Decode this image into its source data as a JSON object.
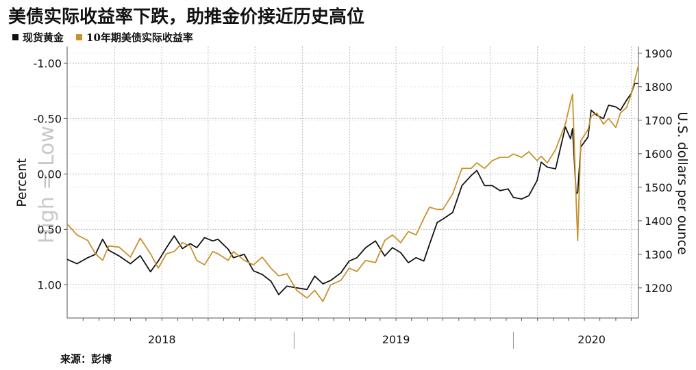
{
  "title": "美债实际收益率下跌，助推金价接近历史高位",
  "source": "来源：彭博",
  "chart_data": {
    "type": "line",
    "legend_placement": "top-left",
    "grid": true,
    "left_axis": {
      "label": "Percent",
      "watermark": "High = Low",
      "inverted": true,
      "range": [
        1.3,
        -1.15
      ],
      "ticks": [
        "-1.00",
        "-0.50",
        "0.00",
        "0.50",
        "1.00"
      ],
      "tick_values": [
        -1.0,
        -0.5,
        0.0,
        0.5,
        1.0
      ]
    },
    "right_axis": {
      "label": "U.S. dollars per ounce",
      "range": [
        1110,
        1920
      ],
      "ticks": [
        "1900",
        "1800",
        "1700",
        "1600",
        "1500",
        "1400",
        "1300",
        "1200"
      ],
      "tick_values": [
        1900,
        1800,
        1700,
        1600,
        1500,
        1400,
        1300,
        1200
      ]
    },
    "x_axis": {
      "range": [
        "2017-07-01",
        "2020-07-15"
      ],
      "year_labels": [
        {
          "label": "2018",
          "center": "2018-01-01"
        },
        {
          "label": "2019",
          "center": "2019-04-01"
        },
        {
          "label": "2020",
          "center": "2020-04-15"
        }
      ],
      "year_separators": [
        "2018-09-15",
        "2019-11-15"
      ],
      "grid_dates": [
        "2017-10-01",
        "2018-01-01",
        "2018-04-01",
        "2018-07-01",
        "2018-10-01",
        "2019-01-01",
        "2019-04-01",
        "2019-07-01",
        "2019-10-01",
        "2020-01-01",
        "2020-04-01",
        "2020-07-01"
      ]
    },
    "series": [
      {
        "name": "现货黄金",
        "axis": "right",
        "color": "#111111",
        "points": [
          [
            "2017-07-01",
            1285
          ],
          [
            "2017-07-20",
            1272
          ],
          [
            "2017-08-10",
            1290
          ],
          [
            "2017-08-25",
            1300
          ],
          [
            "2017-09-08",
            1345
          ],
          [
            "2017-09-20",
            1312
          ],
          [
            "2017-10-10",
            1295
          ],
          [
            "2017-11-01",
            1272
          ],
          [
            "2017-11-20",
            1296
          ],
          [
            "2017-12-10",
            1248
          ],
          [
            "2017-12-25",
            1280
          ],
          [
            "2018-01-10",
            1320
          ],
          [
            "2018-01-25",
            1355
          ],
          [
            "2018-02-10",
            1317
          ],
          [
            "2018-02-25",
            1332
          ],
          [
            "2018-03-10",
            1320
          ],
          [
            "2018-03-25",
            1350
          ],
          [
            "2018-04-10",
            1340
          ],
          [
            "2018-04-20",
            1345
          ],
          [
            "2018-05-10",
            1315
          ],
          [
            "2018-05-20",
            1290
          ],
          [
            "2018-06-10",
            1300
          ],
          [
            "2018-06-28",
            1251
          ],
          [
            "2018-07-15",
            1240
          ],
          [
            "2018-08-01",
            1220
          ],
          [
            "2018-08-16",
            1180
          ],
          [
            "2018-09-01",
            1205
          ],
          [
            "2018-09-20",
            1200
          ],
          [
            "2018-10-10",
            1195
          ],
          [
            "2018-10-25",
            1235
          ],
          [
            "2018-11-10",
            1212
          ],
          [
            "2018-11-25",
            1222
          ],
          [
            "2018-12-15",
            1245
          ],
          [
            "2018-12-31",
            1280
          ],
          [
            "2019-01-15",
            1290
          ],
          [
            "2019-02-01",
            1320
          ],
          [
            "2019-02-20",
            1340
          ],
          [
            "2019-03-10",
            1295
          ],
          [
            "2019-03-25",
            1320
          ],
          [
            "2019-04-10",
            1305
          ],
          [
            "2019-04-25",
            1275
          ],
          [
            "2019-05-10",
            1290
          ],
          [
            "2019-05-25",
            1280
          ],
          [
            "2019-06-05",
            1330
          ],
          [
            "2019-06-20",
            1395
          ],
          [
            "2019-07-01",
            1405
          ],
          [
            "2019-07-20",
            1425
          ],
          [
            "2019-08-07",
            1505
          ],
          [
            "2019-08-25",
            1535
          ],
          [
            "2019-09-05",
            1550
          ],
          [
            "2019-09-20",
            1505
          ],
          [
            "2019-10-05",
            1505
          ],
          [
            "2019-10-20",
            1490
          ],
          [
            "2019-11-05",
            1495
          ],
          [
            "2019-11-15",
            1470
          ],
          [
            "2019-12-01",
            1465
          ],
          [
            "2019-12-15",
            1475
          ],
          [
            "2019-12-31",
            1520
          ],
          [
            "2020-01-08",
            1575
          ],
          [
            "2020-01-20",
            1560
          ],
          [
            "2020-02-05",
            1555
          ],
          [
            "2020-02-24",
            1680
          ],
          [
            "2020-03-05",
            1645
          ],
          [
            "2020-03-09",
            1675
          ],
          [
            "2020-03-16",
            1480
          ],
          [
            "2020-03-19",
            1485
          ],
          [
            "2020-03-25",
            1620
          ],
          [
            "2020-04-08",
            1650
          ],
          [
            "2020-04-14",
            1730
          ],
          [
            "2020-04-25",
            1715
          ],
          [
            "2020-05-08",
            1705
          ],
          [
            "2020-05-18",
            1745
          ],
          [
            "2020-06-01",
            1740
          ],
          [
            "2020-06-10",
            1730
          ],
          [
            "2020-06-22",
            1760
          ],
          [
            "2020-07-01",
            1780
          ],
          [
            "2020-07-08",
            1810
          ],
          [
            "2020-07-15",
            1810
          ]
        ]
      },
      {
        "name": "10年期美债实际收益率",
        "axis": "left",
        "color": "#c8912d",
        "points": [
          [
            "2017-07-01",
            0.45
          ],
          [
            "2017-07-20",
            0.55
          ],
          [
            "2017-08-10",
            0.6
          ],
          [
            "2017-08-25",
            0.72
          ],
          [
            "2017-09-08",
            0.78
          ],
          [
            "2017-09-20",
            0.65
          ],
          [
            "2017-10-10",
            0.66
          ],
          [
            "2017-11-01",
            0.75
          ],
          [
            "2017-11-20",
            0.58
          ],
          [
            "2017-12-10",
            0.72
          ],
          [
            "2017-12-25",
            0.85
          ],
          [
            "2018-01-10",
            0.72
          ],
          [
            "2018-01-25",
            0.7
          ],
          [
            "2018-02-10",
            0.62
          ],
          [
            "2018-02-25",
            0.65
          ],
          [
            "2018-03-10",
            0.78
          ],
          [
            "2018-03-25",
            0.82
          ],
          [
            "2018-04-10",
            0.7
          ],
          [
            "2018-04-20",
            0.72
          ],
          [
            "2018-05-10",
            0.78
          ],
          [
            "2018-05-20",
            0.7
          ],
          [
            "2018-06-10",
            0.78
          ],
          [
            "2018-06-28",
            0.82
          ],
          [
            "2018-07-15",
            0.75
          ],
          [
            "2018-08-01",
            0.85
          ],
          [
            "2018-08-16",
            0.92
          ],
          [
            "2018-09-01",
            0.9
          ],
          [
            "2018-09-20",
            1.05
          ],
          [
            "2018-10-10",
            1.12
          ],
          [
            "2018-10-25",
            1.05
          ],
          [
            "2018-11-10",
            1.15
          ],
          [
            "2018-11-25",
            1.0
          ],
          [
            "2018-12-15",
            0.96
          ],
          [
            "2018-12-31",
            0.85
          ],
          [
            "2019-01-15",
            0.88
          ],
          [
            "2019-02-01",
            0.78
          ],
          [
            "2019-02-20",
            0.8
          ],
          [
            "2019-03-10",
            0.6
          ],
          [
            "2019-03-25",
            0.55
          ],
          [
            "2019-04-10",
            0.62
          ],
          [
            "2019-04-25",
            0.52
          ],
          [
            "2019-05-10",
            0.55
          ],
          [
            "2019-05-25",
            0.4
          ],
          [
            "2019-06-05",
            0.3
          ],
          [
            "2019-06-20",
            0.32
          ],
          [
            "2019-07-01",
            0.32
          ],
          [
            "2019-07-20",
            0.18
          ],
          [
            "2019-08-07",
            -0.05
          ],
          [
            "2019-08-25",
            -0.05
          ],
          [
            "2019-09-05",
            -0.1
          ],
          [
            "2019-09-20",
            -0.05
          ],
          [
            "2019-10-05",
            -0.12
          ],
          [
            "2019-10-20",
            -0.15
          ],
          [
            "2019-11-05",
            -0.15
          ],
          [
            "2019-11-15",
            -0.18
          ],
          [
            "2019-12-01",
            -0.15
          ],
          [
            "2019-12-15",
            -0.2
          ],
          [
            "2019-12-31",
            -0.12
          ],
          [
            "2020-01-08",
            -0.16
          ],
          [
            "2020-01-20",
            -0.1
          ],
          [
            "2020-02-05",
            -0.22
          ],
          [
            "2020-02-24",
            -0.45
          ],
          [
            "2020-03-05",
            -0.65
          ],
          [
            "2020-03-09",
            -0.72
          ],
          [
            "2020-03-16",
            0.25
          ],
          [
            "2020-03-19",
            0.6
          ],
          [
            "2020-03-25",
            -0.3
          ],
          [
            "2020-04-08",
            -0.4
          ],
          [
            "2020-04-14",
            -0.52
          ],
          [
            "2020-04-25",
            -0.55
          ],
          [
            "2020-05-08",
            -0.45
          ],
          [
            "2020-05-18",
            -0.5
          ],
          [
            "2020-06-01",
            -0.42
          ],
          [
            "2020-06-10",
            -0.55
          ],
          [
            "2020-06-22",
            -0.6
          ],
          [
            "2020-07-01",
            -0.72
          ],
          [
            "2020-07-08",
            -0.85
          ],
          [
            "2020-07-15",
            -0.98
          ]
        ]
      }
    ]
  }
}
